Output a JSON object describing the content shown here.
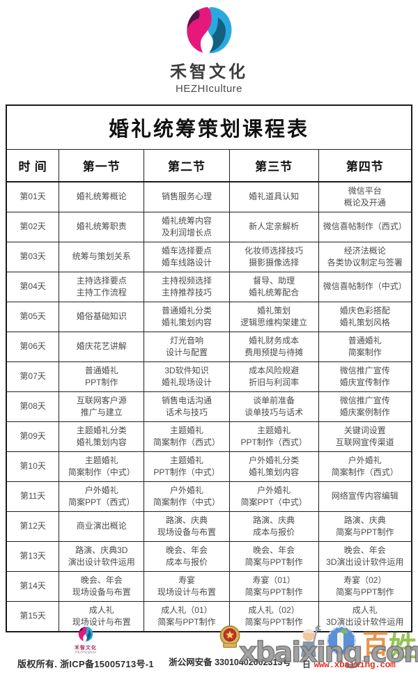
{
  "brand": {
    "name": "禾智文化",
    "name_en": "HEZHIculture"
  },
  "table": {
    "title": "婚礼统筹策划课程表",
    "columns": [
      "时  间",
      "第一节",
      "第二节",
      "第三节",
      "第四节"
    ],
    "rows": [
      {
        "day": "第01天",
        "cells": [
          "婚礼统筹概论",
          "销售服务心理",
          "婚礼道具认知",
          "微信平台\n概论及开通"
        ]
      },
      {
        "day": "第02天",
        "cells": [
          "婚礼统筹职责",
          "婚礼统筹内容\n及利润增长点",
          "新人定亲解析",
          "微信喜帖制作（西式）"
        ]
      },
      {
        "day": "第03天",
        "cells": [
          "统筹与策划关系",
          "婚车选择要点\n婚车线路设计",
          "化妆师选择技巧\n摄影摄像选择",
          "经济法概论\n各类协议制定与签署"
        ]
      },
      {
        "day": "第04天",
        "cells": [
          "主持选择要点\n主持工作流程",
          "主持视频选择\n主持推荐技巧",
          "督导、助理\n婚礼统筹配合",
          "微信喜帖制作（中式）"
        ]
      },
      {
        "day": "第05天",
        "cells": [
          "婚俗基础知识",
          "普通婚礼分类\n婚礼策划内容",
          "婚礼策划\n逻辑思维构架建立",
          "婚庆色彩搭配\n婚礼策划风格"
        ]
      },
      {
        "day": "第06天",
        "cells": [
          "婚庆花艺讲解",
          "灯光音响\n设计与配置",
          "婚礼财务成本\n费用预提与待摊",
          "普通婚礼\n简案制作"
        ]
      },
      {
        "day": "第07天",
        "cells": [
          "普通婚礼\nPPT制作",
          "3D软件知识\n婚礼现场设计",
          "成本风险规避\n折旧与利润率",
          "微信推广宣传\n婚庆宣传制作"
        ]
      },
      {
        "day": "第08天",
        "cells": [
          "互联网客户源\n推广与建立",
          "销售电话沟通\n话术与技巧",
          "谈单前准备\n谈单技巧与话术",
          "微信推广宣传\n婚庆案例制作"
        ]
      },
      {
        "day": "第09天",
        "cells": [
          "主题婚礼分类\n婚礼策划内容",
          "主题婚礼\n简案制作（西式）",
          "主题婚礼\nPPT制作（西式）",
          "关键词设置\n互联网宣传渠道"
        ]
      },
      {
        "day": "第10天",
        "cells": [
          "主题婚礼\n简案制作（中式）",
          "主题婚礼\nPPT制作（中式）",
          "户外婚礼分类\n婚礼策划内容",
          "户外婚礼\n简案制作（西式）"
        ]
      },
      {
        "day": "第11天",
        "cells": [
          "户外婚礼\n简案PPT（西式）",
          "户外婚礼\n简案制作（中式）",
          "户外婚礼\n简案PPT（中式）",
          "网络宣传内容编辑"
        ]
      },
      {
        "day": "第12天",
        "cells": [
          "商业演出概论",
          "路演、庆典\n现场设备与布置",
          "路演、庆典\n成本与报价",
          "路演、庆典\n简案与PPT制作"
        ]
      },
      {
        "day": "第13天",
        "cells": [
          "路演、庆典3D\n演出设计软件运用",
          "晚会、年会\n成本与报价",
          "晚会、年会\n简案与PPT制作",
          "晚会、年会\n3D演出设计软件运用"
        ]
      },
      {
        "day": "第14天",
        "cells": [
          "晚会、年会\n现场设备与布置",
          "寿宴\n现场设计与布置",
          "寿宴（01）\n简案与PPT制作",
          "寿宴（02）\n简案与PPT制作"
        ]
      },
      {
        "day": "第15天",
        "cells": [
          "成人礼\n现场设计与布置",
          "成人礼（01）\n简案与PPT制作",
          "成人礼（02）\n简案与PPT制作",
          "成人礼\n3D演出设计软件运用"
        ]
      }
    ]
  },
  "footer": {
    "brand_small": {
      "name": "禾智文化",
      "name_en": "HEZHIculture"
    },
    "copyright": "版权所有. 浙ICP备15005713号-1",
    "security_record": "浙公网安备 33010402002313号"
  },
  "watermark": {
    "big": "xbaixing.com",
    "url_prefix": "日",
    "url": "www.xbaixing.com",
    "logo_char_1": "百",
    "logo_char_2": "姓"
  },
  "colors": {
    "logo_pink": "#e6187c",
    "logo_purple": "#4b1747",
    "logo_blue": "#2aa9e0",
    "logo_navy": "#14607e",
    "watermark_gray": "#9b9b9b",
    "url_red": "#e0372b"
  }
}
